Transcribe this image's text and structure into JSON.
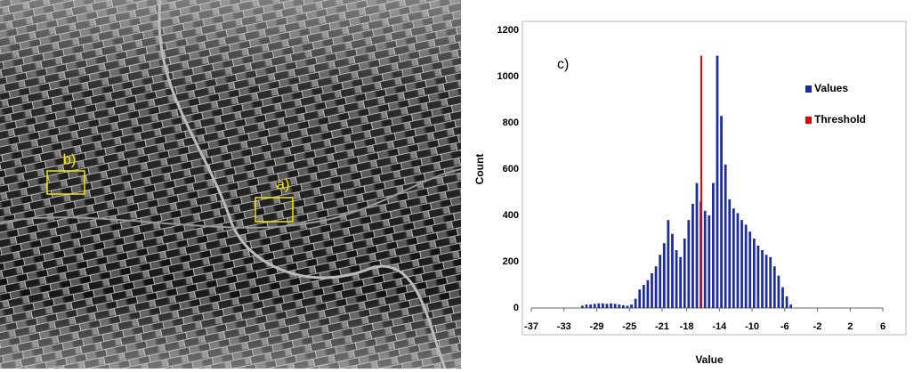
{
  "image": {
    "labels": [
      "a)",
      "b)"
    ]
  },
  "chart_data": {
    "type": "histogram",
    "annotation": "c)",
    "xlabel": "Value",
    "ylabel": "Count",
    "bins": [
      -31,
      -30.5,
      -30,
      -29.5,
      -29,
      -28.5,
      -28,
      -27.5,
      -27,
      -26.5,
      -26,
      -25.5,
      -25,
      -24.5,
      -24,
      -23.5,
      -23,
      -22.5,
      -22,
      -21.5,
      -21,
      -20.5,
      -20,
      -19.5,
      -19,
      -18.5,
      -18,
      -17.5,
      -17,
      -16.5,
      -16,
      -15.5,
      -15,
      -14.5,
      -14,
      -13.5,
      -13,
      -12.5,
      -12,
      -11.5,
      -11,
      -10.5,
      -10,
      -9.5,
      -9,
      -8.5,
      -8,
      -7.5,
      -7,
      -6.5,
      -6,
      -5.5,
      -5
    ],
    "series": [
      {
        "name": "Values",
        "color": "#1c2c9c",
        "values": [
          10,
          15,
          15,
          18,
          20,
          20,
          18,
          20,
          18,
          15,
          12,
          10,
          15,
          40,
          80,
          100,
          120,
          150,
          180,
          230,
          280,
          380,
          320,
          250,
          220,
          300,
          380,
          450,
          540,
          460,
          420,
          400,
          540,
          1090,
          830,
          620,
          470,
          430,
          410,
          380,
          360,
          330,
          300,
          270,
          250,
          230,
          220,
          180,
          140,
          90,
          50,
          15
        ]
      }
    ],
    "threshold": {
      "name": "Threshold",
      "color": "#e00000",
      "x": -16.2,
      "top": 1090
    },
    "xlim": [
      -37,
      6
    ],
    "xticks": [
      -37,
      -33,
      -29,
      -25,
      -21,
      -18,
      -14,
      -10,
      -6,
      -2,
      2,
      6
    ],
    "ylim": [
      0,
      1200
    ],
    "yticks": [
      0,
      200,
      400,
      600,
      800,
      1000,
      1200
    ],
    "grid": false,
    "legend": "upper right"
  }
}
